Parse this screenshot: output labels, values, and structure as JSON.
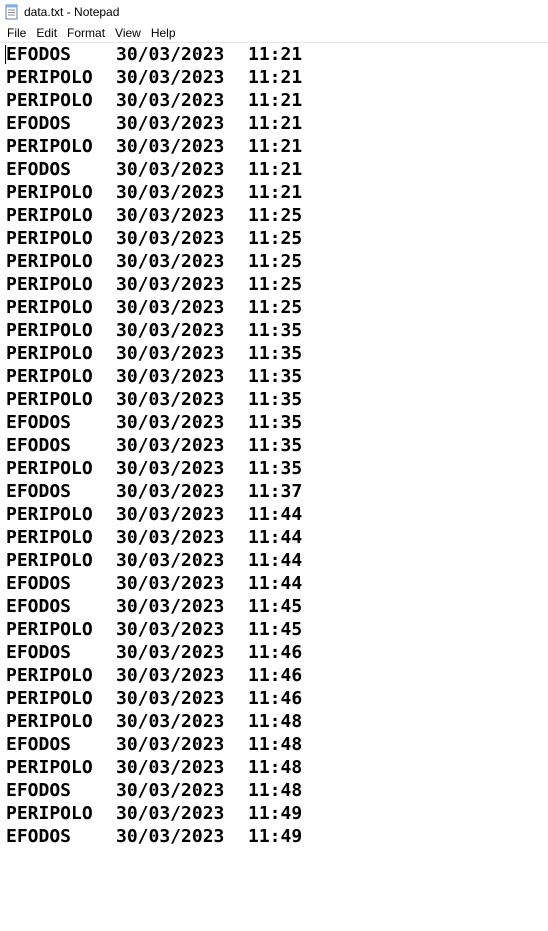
{
  "window": {
    "title": "data.txt - Notepad",
    "icon": "notepad-icon"
  },
  "menu": [
    "File",
    "Edit",
    "Format",
    "View",
    "Help"
  ],
  "lines": [
    {
      "name": "EFODOS",
      "date": "30/03/2023",
      "time": "11:21"
    },
    {
      "name": "PERIPOLO",
      "date": "30/03/2023",
      "time": "11:21"
    },
    {
      "name": "PERIPOLO",
      "date": "30/03/2023",
      "time": "11:21"
    },
    {
      "name": "EFODOS",
      "date": "30/03/2023",
      "time": "11:21"
    },
    {
      "name": "PERIPOLO",
      "date": "30/03/2023",
      "time": "11:21"
    },
    {
      "name": "EFODOS",
      "date": "30/03/2023",
      "time": "11:21"
    },
    {
      "name": "PERIPOLO",
      "date": "30/03/2023",
      "time": "11:21"
    },
    {
      "name": "PERIPOLO",
      "date": "30/03/2023",
      "time": "11:25"
    },
    {
      "name": "PERIPOLO",
      "date": "30/03/2023",
      "time": "11:25"
    },
    {
      "name": "PERIPOLO",
      "date": "30/03/2023",
      "time": "11:25"
    },
    {
      "name": "PERIPOLO",
      "date": "30/03/2023",
      "time": "11:25"
    },
    {
      "name": "PERIPOLO",
      "date": "30/03/2023",
      "time": "11:25"
    },
    {
      "name": "PERIPOLO",
      "date": "30/03/2023",
      "time": "11:35"
    },
    {
      "name": "PERIPOLO",
      "date": "30/03/2023",
      "time": "11:35"
    },
    {
      "name": "PERIPOLO",
      "date": "30/03/2023",
      "time": "11:35"
    },
    {
      "name": "PERIPOLO",
      "date": "30/03/2023",
      "time": "11:35"
    },
    {
      "name": "EFODOS",
      "date": "30/03/2023",
      "time": "11:35"
    },
    {
      "name": "EFODOS",
      "date": "30/03/2023",
      "time": "11:35"
    },
    {
      "name": "PERIPOLO",
      "date": "30/03/2023",
      "time": "11:35"
    },
    {
      "name": "EFODOS",
      "date": "30/03/2023",
      "time": "11:37"
    },
    {
      "name": "PERIPOLO",
      "date": "30/03/2023",
      "time": "11:44"
    },
    {
      "name": "PERIPOLO",
      "date": "30/03/2023",
      "time": "11:44"
    },
    {
      "name": "PERIPOLO",
      "date": "30/03/2023",
      "time": "11:44"
    },
    {
      "name": "EFODOS",
      "date": "30/03/2023",
      "time": "11:44"
    },
    {
      "name": "EFODOS",
      "date": "30/03/2023",
      "time": "11:45"
    },
    {
      "name": "PERIPOLO",
      "date": "30/03/2023",
      "time": "11:45"
    },
    {
      "name": "EFODOS",
      "date": "30/03/2023",
      "time": "11:46"
    },
    {
      "name": "PERIPOLO",
      "date": "30/03/2023",
      "time": "11:46"
    },
    {
      "name": "PERIPOLO",
      "date": "30/03/2023",
      "time": "11:46"
    },
    {
      "name": "PERIPOLO",
      "date": "30/03/2023",
      "time": "11:48"
    },
    {
      "name": "EFODOS",
      "date": "30/03/2023",
      "time": "11:48"
    },
    {
      "name": "PERIPOLO",
      "date": "30/03/2023",
      "time": "11:48"
    },
    {
      "name": "EFODOS",
      "date": "30/03/2023",
      "time": "11:48"
    },
    {
      "name": "PERIPOLO",
      "date": "30/03/2023",
      "time": "11:49"
    },
    {
      "name": "EFODOS",
      "date": "30/03/2023",
      "time": "11:49"
    }
  ]
}
